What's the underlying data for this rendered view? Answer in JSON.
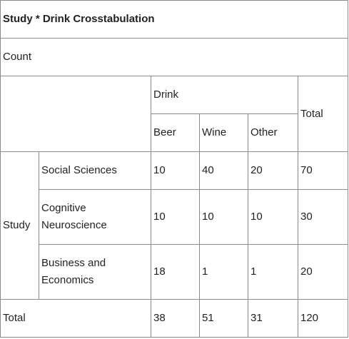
{
  "title": "Study * Drink Crosstabulation",
  "statistic": "Count",
  "col_group_label": "Drink",
  "columns": [
    "Beer",
    "Wine",
    "Other"
  ],
  "total_label": "Total",
  "row_group_label": "Study",
  "rows": [
    {
      "label": "Social Sciences",
      "values": [
        "10",
        "40",
        "20"
      ],
      "total": "70"
    },
    {
      "label": "Cognitive Neuroscience",
      "values": [
        "10",
        "10",
        "10"
      ],
      "total": "30"
    },
    {
      "label": "Business and Economics",
      "values": [
        "18",
        "1",
        "1"
      ],
      "total": "20"
    }
  ],
  "totals": {
    "values": [
      "38",
      "51",
      "31"
    ],
    "total": "120"
  }
}
